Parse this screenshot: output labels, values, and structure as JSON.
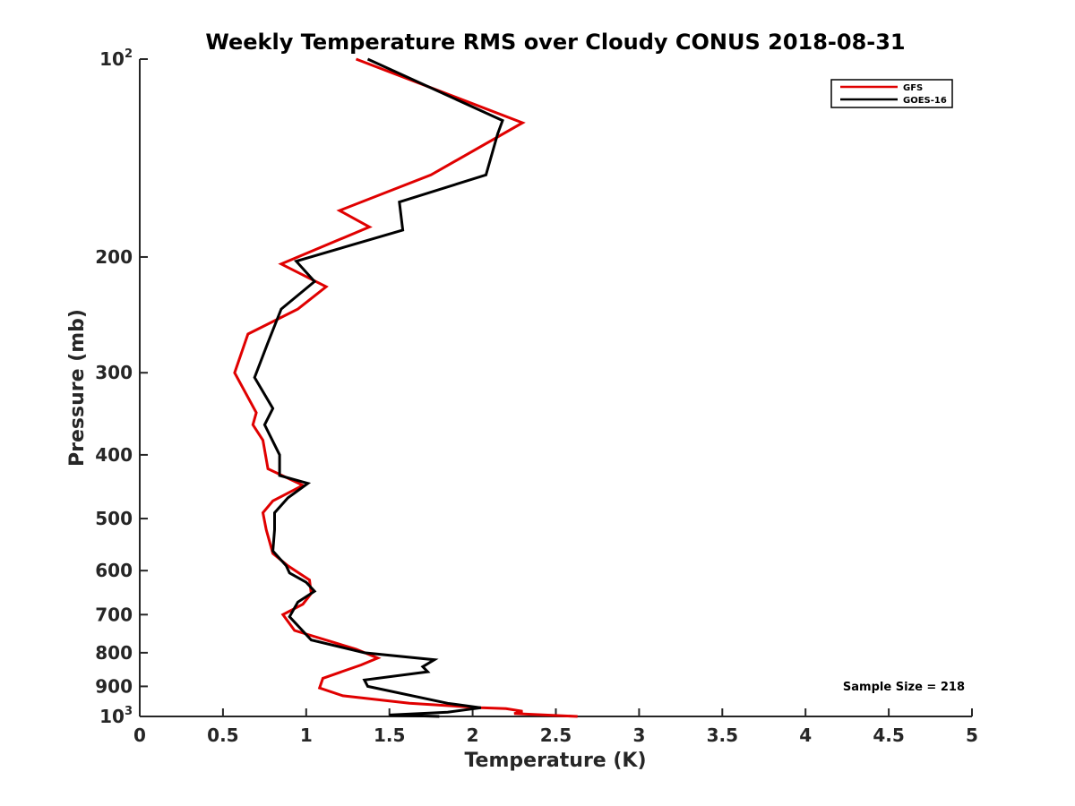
{
  "chart_data": {
    "type": "line",
    "title": "Weekly Temperature RMS over Cloudy CONUS 2018-08-31",
    "xlabel": "Temperature (K)",
    "ylabel": "Pressure (mb)",
    "xlim": [
      0,
      5
    ],
    "ylim": [
      100,
      1000
    ],
    "y_scale": "log",
    "y_reversed": true,
    "grid": false,
    "legend_position": "top-right",
    "x_ticks": [
      0,
      0.5,
      1,
      1.5,
      2,
      2.5,
      3,
      3.5,
      4,
      4.5,
      5
    ],
    "x_tick_labels": [
      "0",
      "0.5",
      "1",
      "1.5",
      "2",
      "2.5",
      "3",
      "3.5",
      "4",
      "4.5",
      "5"
    ],
    "y_ticks": [
      {
        "value": 100,
        "base": "10",
        "exp": "2"
      },
      {
        "value": 200,
        "base": "200",
        "exp": ""
      },
      {
        "value": 300,
        "base": "300",
        "exp": ""
      },
      {
        "value": 400,
        "base": "400",
        "exp": ""
      },
      {
        "value": 500,
        "base": "500",
        "exp": ""
      },
      {
        "value": 600,
        "base": "600",
        "exp": ""
      },
      {
        "value": 700,
        "base": "700",
        "exp": ""
      },
      {
        "value": 800,
        "base": "800",
        "exp": ""
      },
      {
        "value": 900,
        "base": "900",
        "exp": ""
      },
      {
        "value": 1000,
        "base": "10",
        "exp": "3"
      }
    ],
    "series": [
      {
        "name": "GFS",
        "color": "#e00000",
        "points": [
          [
            1.3,
            100
          ],
          [
            2.3,
            125
          ],
          [
            1.75,
            150
          ],
          [
            1.2,
            170
          ],
          [
            1.38,
            180
          ],
          [
            0.85,
            205
          ],
          [
            1.12,
            222
          ],
          [
            0.95,
            240
          ],
          [
            0.65,
            262
          ],
          [
            0.57,
            300
          ],
          [
            0.7,
            345
          ],
          [
            0.68,
            360
          ],
          [
            0.74,
            380
          ],
          [
            0.77,
            420
          ],
          [
            0.98,
            445
          ],
          [
            0.8,
            470
          ],
          [
            0.74,
            490
          ],
          [
            0.76,
            520
          ],
          [
            0.8,
            565
          ],
          [
            0.89,
            590
          ],
          [
            1.02,
            620
          ],
          [
            1.03,
            650
          ],
          [
            0.98,
            675
          ],
          [
            0.86,
            700
          ],
          [
            0.93,
            740
          ],
          [
            1.3,
            790
          ],
          [
            1.43,
            815
          ],
          [
            1.33,
            835
          ],
          [
            1.1,
            875
          ],
          [
            1.08,
            905
          ],
          [
            1.22,
            930
          ],
          [
            1.62,
            955
          ],
          [
            2.05,
            970
          ],
          [
            2.2,
            973
          ],
          [
            2.3,
            982
          ],
          [
            2.25,
            990
          ],
          [
            2.63,
            1000
          ]
        ]
      },
      {
        "name": "GOES-16",
        "color": "#000000",
        "points": [
          [
            1.37,
            100
          ],
          [
            2.18,
            124
          ],
          [
            2.15,
            130
          ],
          [
            2.08,
            150
          ],
          [
            1.56,
            165
          ],
          [
            1.58,
            182
          ],
          [
            0.94,
            203
          ],
          [
            1.05,
            218
          ],
          [
            0.85,
            240
          ],
          [
            0.77,
            270
          ],
          [
            0.69,
            305
          ],
          [
            0.8,
            340
          ],
          [
            0.75,
            360
          ],
          [
            0.84,
            400
          ],
          [
            0.84,
            430
          ],
          [
            1.01,
            442
          ],
          [
            0.89,
            465
          ],
          [
            0.81,
            490
          ],
          [
            0.81,
            520
          ],
          [
            0.8,
            560
          ],
          [
            0.88,
            590
          ],
          [
            0.9,
            605
          ],
          [
            1.0,
            625
          ],
          [
            1.05,
            645
          ],
          [
            0.95,
            670
          ],
          [
            0.9,
            705
          ],
          [
            1.03,
            765
          ],
          [
            1.35,
            800
          ],
          [
            1.77,
            820
          ],
          [
            1.7,
            840
          ],
          [
            1.73,
            855
          ],
          [
            1.35,
            880
          ],
          [
            1.37,
            900
          ],
          [
            1.85,
            955
          ],
          [
            2.05,
            970
          ],
          [
            1.85,
            985
          ],
          [
            1.5,
            995
          ],
          [
            1.8,
            1000
          ]
        ]
      }
    ],
    "annotation": "Sample Size = 218"
  }
}
